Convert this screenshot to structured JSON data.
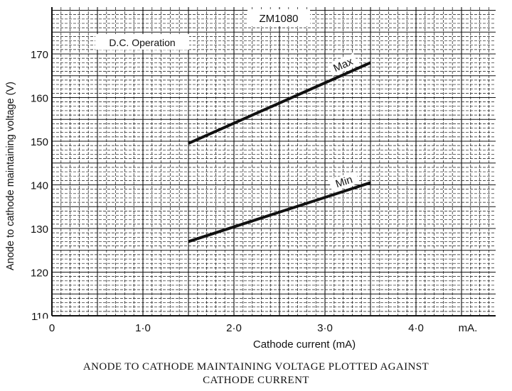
{
  "chart_data": {
    "type": "line",
    "title": "ZM1080",
    "annotation": "D.C. Operation",
    "xlabel": "Cathode current (mA)",
    "ylabel": "Anode to cathode maintaining voltage (V)",
    "xlim": [
      0,
      5
    ],
    "ylim": [
      110,
      175
    ],
    "x_ticks": [
      {
        "value": 0,
        "label": "0"
      },
      {
        "value": 1,
        "label": "1·0"
      },
      {
        "value": 2,
        "label": "2·0"
      },
      {
        "value": 3,
        "label": "3·0"
      },
      {
        "value": 4,
        "label": "4·0"
      }
    ],
    "x_unit_label": "mA.",
    "y_ticks": [
      110,
      120,
      130,
      140,
      150,
      160,
      170
    ],
    "grid": true,
    "series": [
      {
        "name": "Max",
        "x": [
          1.5,
          3.5
        ],
        "y": [
          149.5,
          168
        ]
      },
      {
        "name": "Min",
        "x": [
          1.5,
          3.5
        ],
        "y": [
          127,
          140.5
        ]
      }
    ],
    "caption_lines": [
      "ANODE TO CATHODE MAINTAINING VOLTAGE PLOTTED AGAINST",
      "CATHODE CURRENT"
    ],
    "colors": {
      "ink": "#111111",
      "paper": "#ffffff"
    }
  }
}
